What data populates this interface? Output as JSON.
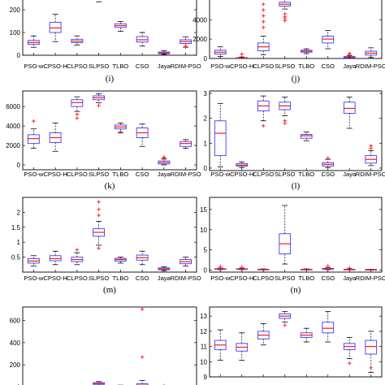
{
  "chart_data": [
    {
      "id": "top-left",
      "panel_label": "(i)",
      "type": "box",
      "ylim": [
        0,
        250
      ],
      "yticks": [
        0,
        100,
        200
      ],
      "categories": [
        "PSO-w",
        "CPSO-H",
        "CLPSO",
        "SLPSO",
        "TLBO",
        "CSO",
        "Jaya",
        "RDIM-PSO"
      ],
      "boxes": [
        {
          "whislo": 35,
          "q1": 48,
          "med": 56,
          "q3": 65,
          "whishi": 85,
          "fliers": []
        },
        {
          "whislo": 60,
          "q1": 100,
          "med": 120,
          "q3": 145,
          "whishi": 180,
          "fliers": []
        },
        {
          "whislo": 45,
          "q1": 55,
          "med": 62,
          "q3": 70,
          "whishi": 85,
          "fliers": []
        },
        {
          "whislo": 235,
          "q1": 250,
          "med": 260,
          "q3": 270,
          "whishi": 285,
          "fliers": []
        },
        {
          "whislo": 105,
          "q1": 122,
          "med": 130,
          "q3": 138,
          "whishi": 148,
          "fliers": []
        },
        {
          "whislo": 40,
          "q1": 58,
          "med": 68,
          "q3": 82,
          "whishi": 100,
          "fliers": []
        },
        {
          "whislo": 4,
          "q1": 7,
          "med": 10,
          "q3": 14,
          "whishi": 20,
          "fliers": []
        },
        {
          "whislo": 35,
          "q1": 52,
          "med": 60,
          "q3": 68,
          "whishi": 80,
          "fliers": [
            36,
            40
          ]
        }
      ]
    },
    {
      "id": "top-right",
      "panel_label": "(j)",
      "type": "box",
      "ylim": [
        0,
        6200
      ],
      "yticks": [
        0,
        2000,
        4000
      ],
      "categories": [
        "PSO-w",
        "CPSO-H",
        "CLPSO",
        "SLPSO",
        "TLBO",
        "CSO",
        "Jaya",
        "RDIM-PSO"
      ],
      "boxes": [
        {
          "whislo": 200,
          "q1": 450,
          "med": 650,
          "q3": 850,
          "whishi": 1200,
          "fliers": []
        },
        {
          "whislo": 0,
          "q1": 20,
          "med": 50,
          "q3": 90,
          "whishi": 150,
          "fliers": [
            450
          ]
        },
        {
          "whislo": 400,
          "q1": 800,
          "med": 1200,
          "q3": 1600,
          "whishi": 2300,
          "fliers": [
            3200,
            3800,
            4400,
            5000,
            5600
          ]
        },
        {
          "whislo": 5100,
          "q1": 5400,
          "med": 5600,
          "q3": 5800,
          "whishi": 6100,
          "fliers": [
            3900,
            4100,
            4300,
            4600
          ]
        },
        {
          "whislo": 500,
          "q1": 650,
          "med": 750,
          "q3": 850,
          "whishi": 1000,
          "fliers": []
        },
        {
          "whislo": 1000,
          "q1": 1600,
          "med": 2000,
          "q3": 2300,
          "whishi": 2900,
          "fliers": []
        },
        {
          "whislo": 0,
          "q1": 60,
          "med": 120,
          "q3": 200,
          "whishi": 300,
          "fliers": [
            420,
            520
          ]
        },
        {
          "whislo": 100,
          "q1": 350,
          "med": 550,
          "q3": 750,
          "whishi": 1100,
          "fliers": []
        }
      ]
    },
    {
      "id": "middle-left",
      "panel_label": "(k)",
      "type": "box",
      "ylim": [
        -500,
        7600
      ],
      "yticks": [
        0,
        2000,
        4000,
        6000
      ],
      "categories": [
        "PSO-w",
        "CPSO-H",
        "CLPSO",
        "SLPSO",
        "TLBO",
        "CSO",
        "Jaya",
        "RDIM-PSO"
      ],
      "boxes": [
        {
          "whislo": 1700,
          "q1": 2200,
          "med": 2700,
          "q3": 3100,
          "whishi": 3700,
          "fliers": [
            4500
          ]
        },
        {
          "whislo": 1400,
          "q1": 2300,
          "med": 2800,
          "q3": 3300,
          "whishi": 4300,
          "fliers": []
        },
        {
          "whislo": 5500,
          "q1": 6000,
          "med": 6400,
          "q3": 6700,
          "whishi": 7000,
          "fliers": [
            4800,
            5200
          ]
        },
        {
          "whislo": 6400,
          "q1": 6700,
          "med": 6900,
          "q3": 7100,
          "whishi": 7300,
          "fliers": [
            6100
          ]
        },
        {
          "whislo": 3300,
          "q1": 3700,
          "med": 3900,
          "q3": 4100,
          "whishi": 4300,
          "fliers": [
            3400
          ]
        },
        {
          "whislo": 1900,
          "q1": 2800,
          "med": 3300,
          "q3": 3800,
          "whishi": 4200,
          "fliers": []
        },
        {
          "whislo": 0,
          "q1": 100,
          "med": 250,
          "q3": 400,
          "whishi": 600,
          "fliers": [
            700,
            800
          ]
        },
        {
          "whislo": 1700,
          "q1": 1900,
          "med": 2200,
          "q3": 2400,
          "whishi": 2600,
          "fliers": []
        }
      ]
    },
    {
      "id": "middle-right",
      "panel_label": "(l)",
      "type": "box",
      "ylim": [
        -0.1,
        3.1
      ],
      "yticks": [
        0,
        1,
        2,
        3
      ],
      "categories": [
        "PSO-w",
        "CPSO-H",
        "CLPSO",
        "SLPSO",
        "TLBO",
        "CSO",
        "Jaya",
        "RDIM-PSO"
      ],
      "boxes": [
        {
          "whislo": 0.05,
          "q1": 0.5,
          "med": 1.4,
          "q3": 1.9,
          "whishi": 2.6,
          "fliers": []
        },
        {
          "whislo": 0.02,
          "q1": 0.08,
          "med": 0.12,
          "q3": 0.18,
          "whishi": 0.25,
          "fliers": []
        },
        {
          "whislo": 1.9,
          "q1": 2.3,
          "med": 2.5,
          "q3": 2.7,
          "whishi": 2.9,
          "fliers": [
            1.7
          ]
        },
        {
          "whislo": 2.1,
          "q1": 2.35,
          "med": 2.5,
          "q3": 2.65,
          "whishi": 2.85,
          "fliers": [
            1.8,
            1.9
          ]
        },
        {
          "whislo": 1.1,
          "q1": 1.2,
          "med": 1.3,
          "q3": 1.35,
          "whishi": 1.45,
          "fliers": []
        },
        {
          "whislo": 0.02,
          "q1": 0.08,
          "med": 0.15,
          "q3": 0.22,
          "whishi": 0.35,
          "fliers": [
            0.4
          ]
        },
        {
          "whislo": 1.6,
          "q1": 2.2,
          "med": 2.4,
          "q3": 2.65,
          "whishi": 2.85,
          "fliers": []
        },
        {
          "whislo": 0.1,
          "q1": 0.2,
          "med": 0.35,
          "q3": 0.5,
          "whishi": 0.7,
          "fliers": [
            0.8,
            0.9
          ]
        }
      ]
    },
    {
      "id": "lower-left",
      "panel_label": "(m)",
      "type": "box",
      "ylim": [
        0,
        2.5
      ],
      "yticks": [
        0.5,
        1,
        1.5,
        2
      ],
      "categories": [
        "PSO-w",
        "CPSO-H",
        "CLPSO",
        "SLPSO",
        "TLBO",
        "CSO",
        "Jaya",
        "RDIM-PSO"
      ],
      "boxes": [
        {
          "whislo": 0.2,
          "q1": 0.3,
          "med": 0.37,
          "q3": 0.45,
          "whishi": 0.55,
          "fliers": []
        },
        {
          "whislo": 0.25,
          "q1": 0.38,
          "med": 0.45,
          "q3": 0.55,
          "whishi": 0.7,
          "fliers": []
        },
        {
          "whislo": 0.25,
          "q1": 0.35,
          "med": 0.42,
          "q3": 0.5,
          "whishi": 0.65,
          "fliers": [
            0.75
          ]
        },
        {
          "whislo": 0.9,
          "q1": 1.2,
          "med": 1.33,
          "q3": 1.45,
          "whishi": 1.7,
          "fliers": [
            0.8,
            1.9,
            2.1,
            2.35
          ]
        },
        {
          "whislo": 0.3,
          "q1": 0.37,
          "med": 0.42,
          "q3": 0.46,
          "whishi": 0.5,
          "fliers": []
        },
        {
          "whislo": 0.25,
          "q1": 0.4,
          "med": 0.48,
          "q3": 0.57,
          "whishi": 0.7,
          "fliers": []
        },
        {
          "whislo": 0.05,
          "q1": 0.08,
          "med": 0.11,
          "q3": 0.14,
          "whishi": 0.18,
          "fliers": []
        },
        {
          "whislo": 0.2,
          "q1": 0.28,
          "med": 0.35,
          "q3": 0.42,
          "whishi": 0.5,
          "fliers": []
        }
      ]
    },
    {
      "id": "lower-right",
      "panel_label": "(n)",
      "type": "box",
      "ylim": [
        -0.5,
        18
      ],
      "yticks": [
        0,
        5,
        10,
        15
      ],
      "categories": [
        "PSO-w",
        "CPSO-H",
        "CLPSO",
        "SLPSO",
        "TLBO",
        "CSO",
        "Jaya",
        "RDIM-PSO"
      ],
      "boxes": [
        {
          "whislo": 0.1,
          "q1": 0.2,
          "med": 0.28,
          "q3": 0.35,
          "whishi": 0.5,
          "fliers": [
            0.9
          ]
        },
        {
          "whislo": 0.1,
          "q1": 0.18,
          "med": 0.25,
          "q3": 0.32,
          "whishi": 0.45,
          "fliers": [
            0.7
          ]
        },
        {
          "whislo": 0.05,
          "q1": 0.1,
          "med": 0.15,
          "q3": 0.2,
          "whishi": 0.3,
          "fliers": []
        },
        {
          "whislo": 1.5,
          "q1": 4,
          "med": 6.5,
          "q3": 9,
          "whishi": 16,
          "fliers": []
        },
        {
          "whislo": 0.05,
          "q1": 0.1,
          "med": 0.15,
          "q3": 0.2,
          "whishi": 0.3,
          "fliers": []
        },
        {
          "whislo": 0.1,
          "q1": 0.2,
          "med": 0.3,
          "q3": 0.4,
          "whishi": 0.6,
          "fliers": [
            1.0
          ]
        },
        {
          "whislo": 0.05,
          "q1": 0.1,
          "med": 0.15,
          "q3": 0.2,
          "whishi": 0.3,
          "fliers": [
            0.5
          ]
        },
        {
          "whislo": 0.05,
          "q1": 0.1,
          "med": 0.12,
          "q3": 0.15,
          "whishi": 0.2,
          "fliers": []
        }
      ]
    },
    {
      "id": "bottom-left",
      "panel_label": "",
      "type": "box",
      "ylim": [
        -10,
        720
      ],
      "yticks": [
        0,
        200,
        400,
        600
      ],
      "categories": [
        "",
        "",
        "",
        "",
        "",
        "",
        "",
        ""
      ],
      "boxes": [
        {
          "whislo": 3,
          "q1": 6,
          "med": 9,
          "q3": 12,
          "whishi": 16,
          "fliers": []
        },
        {
          "whislo": 3,
          "q1": 6,
          "med": 8,
          "q3": 11,
          "whishi": 15,
          "fliers": []
        },
        {
          "whislo": 3,
          "q1": 5,
          "med": 7,
          "q3": 9,
          "whishi": 12,
          "fliers": []
        },
        {
          "whislo": 15,
          "q1": 25,
          "med": 32,
          "q3": 40,
          "whishi": 50,
          "fliers": []
        },
        {
          "whislo": 5,
          "q1": 8,
          "med": 10,
          "q3": 13,
          "whishi": 18,
          "fliers": []
        },
        {
          "whislo": 3,
          "q1": 10,
          "med": 18,
          "q3": 30,
          "whishi": 60,
          "fliers": [
            270,
            700
          ]
        },
        {
          "whislo": 1,
          "q1": 2,
          "med": 3,
          "q3": 4,
          "whishi": 6,
          "fliers": [
            12
          ]
        },
        {
          "whislo": 2,
          "q1": 4,
          "med": 6,
          "q3": 8,
          "whishi": 11,
          "fliers": []
        }
      ]
    },
    {
      "id": "bottom-right",
      "panel_label": "",
      "type": "box",
      "ylim": [
        9,
        13.6
      ],
      "yticks": [
        9,
        10,
        11,
        12,
        13
      ],
      "categories": [
        "",
        "",
        "",
        "",
        "",
        "",
        "",
        ""
      ],
      "boxes": [
        {
          "whislo": 10.1,
          "q1": 10.8,
          "med": 11.1,
          "q3": 11.4,
          "whishi": 12.1,
          "fliers": []
        },
        {
          "whislo": 10.1,
          "q1": 10.7,
          "med": 10.95,
          "q3": 11.2,
          "whishi": 11.9,
          "fliers": []
        },
        {
          "whislo": 11.1,
          "q1": 11.5,
          "med": 11.75,
          "q3": 12.0,
          "whishi": 12.5,
          "fliers": []
        },
        {
          "whislo": 12.6,
          "q1": 12.85,
          "med": 13.0,
          "q3": 13.15,
          "whishi": 13.3,
          "fliers": [
            12.4
          ]
        },
        {
          "whislo": 11.3,
          "q1": 11.6,
          "med": 11.75,
          "q3": 11.9,
          "whishi": 12.2,
          "fliers": []
        },
        {
          "whislo": 11.3,
          "q1": 11.9,
          "med": 12.2,
          "q3": 12.6,
          "whishi": 13.3,
          "fliers": []
        },
        {
          "whislo": 10.2,
          "q1": 10.8,
          "med": 11.0,
          "q3": 11.2,
          "whishi": 11.6,
          "fliers": [
            9.9
          ]
        },
        {
          "whislo": 9.3,
          "q1": 10.5,
          "med": 11.0,
          "q3": 11.4,
          "whishi": 12.0,
          "fliers": [
            9.6
          ]
        }
      ]
    }
  ]
}
